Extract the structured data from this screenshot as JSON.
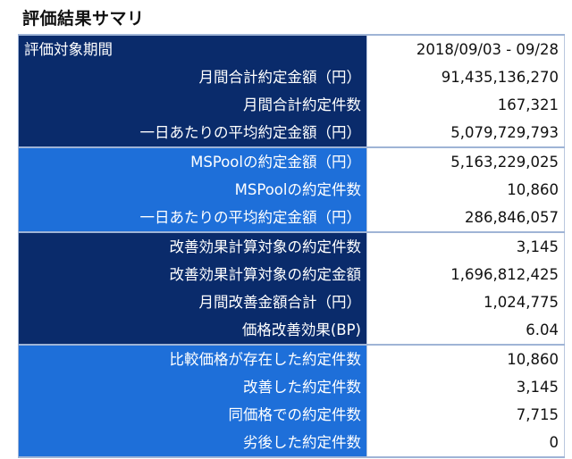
{
  "title": "評価結果サマリ",
  "rows": [
    {
      "label": "評価対象期間",
      "value": "2018/09/03 - 09/28"
    },
    {
      "label": "月間合計約定金額（円）",
      "value": "91,435,136,270"
    },
    {
      "label": "月間合計約定件数",
      "value": "167,321"
    },
    {
      "label": "一日あたりの平均約定金額（円）",
      "value": "5,079,729,793"
    },
    {
      "label": "MSPoolの約定金額（円）",
      "value": "5,163,229,025"
    },
    {
      "label": "MSPoolの約定件数",
      "value": "10,860"
    },
    {
      "label": "一日あたりの平均約定金額（円）",
      "value": "286,846,057"
    },
    {
      "label": "改善効果計算対象の約定件数",
      "value": "3,145"
    },
    {
      "label": "改善効果計算対象の約定金額",
      "value": "1,696,812,425"
    },
    {
      "label": "月間改善金額合計（円）",
      "value": "1,024,775"
    },
    {
      "label": "価格改善効果(BP)",
      "value": "6.04"
    },
    {
      "label": "比較価格が存在した約定件数",
      "value": "10,860"
    },
    {
      "label": "改善した約定件数",
      "value": "3,145"
    },
    {
      "label": "同価格での約定件数",
      "value": "7,715"
    },
    {
      "label": "劣後した約定件数",
      "value": "0"
    }
  ],
  "colors": {
    "dark_group": "#0a2b6b",
    "light_group": "#1e6fd9"
  }
}
